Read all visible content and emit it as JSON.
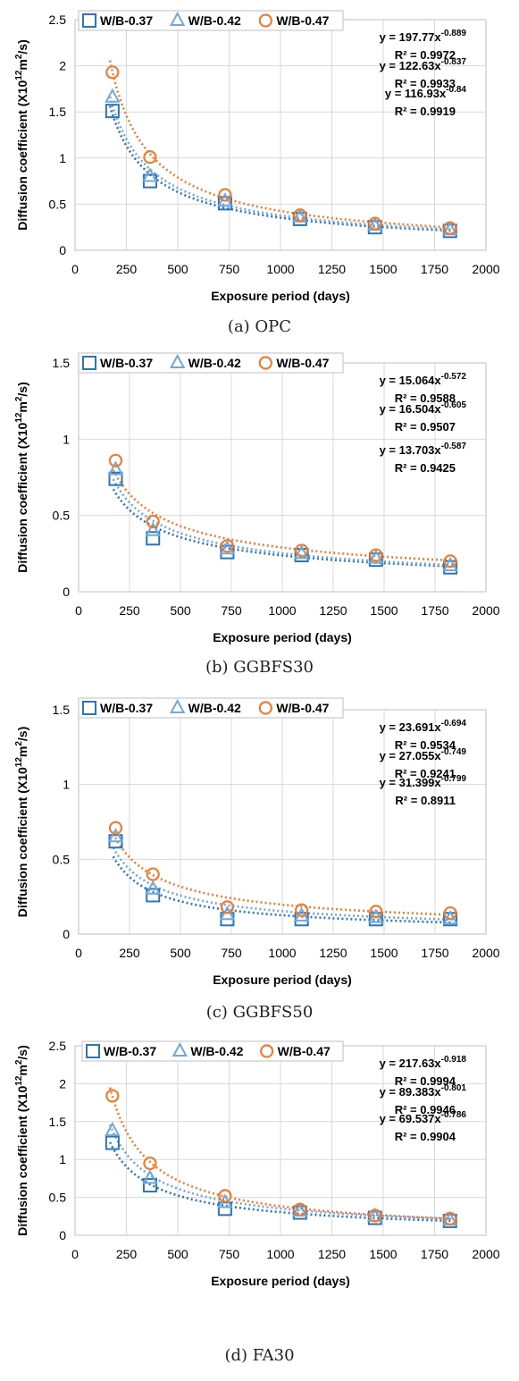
{
  "colors": {
    "wb037": "#2E75B6",
    "wb042": "#6FA8DC",
    "wb047": "#ED7D31",
    "grid": "#d9d9d9"
  },
  "chart_data": [
    {
      "type": "scatter",
      "caption": "(a) OPC",
      "xlabel": "Exposure period (days)",
      "ylabel": "Diffusion coefficient (X10",
      "ylabel_sup": "12",
      "ylabel_unit": "m",
      "ylabel_unit_sup": "2",
      "ylabel_end": "/s)",
      "xlim": [
        0,
        2000
      ],
      "ylim": [
        0,
        2.5
      ],
      "xticks": [
        "0",
        "250",
        "500",
        "750",
        "1000",
        "1250",
        "1500",
        "1750",
        "2000"
      ],
      "yticks": [
        "0",
        "0.5",
        "1",
        "1.5",
        "2",
        "2.5"
      ],
      "legend": "top",
      "series": [
        {
          "name": "W/B-0.37",
          "marker": "square",
          "x": [
            182,
            365,
            730,
            1095,
            1460,
            1825
          ],
          "y": [
            1.51,
            0.75,
            0.51,
            0.34,
            0.25,
            0.21
          ],
          "fit_a": 116.93,
          "fit_b": 0.84,
          "fit_eq": "y = 116.93x",
          "fit_exp": "-0.84",
          "r2": "R² = 0.9919"
        },
        {
          "name": "W/B-0.42",
          "marker": "triangle",
          "x": [
            182,
            365,
            730,
            1095,
            1460,
            1825
          ],
          "y": [
            1.66,
            0.8,
            0.53,
            0.36,
            0.27,
            0.22
          ],
          "fit_a": 122.63,
          "fit_b": 0.837,
          "fit_eq": "y = 122.63x",
          "fit_exp": "-0.837",
          "r2": "R² = 0.9933"
        },
        {
          "name": "W/B-0.47",
          "marker": "circle",
          "x": [
            182,
            365,
            730,
            1095,
            1460,
            1825
          ],
          "y": [
            1.93,
            1.01,
            0.6,
            0.38,
            0.29,
            0.24
          ],
          "fit_a": 197.77,
          "fit_b": 0.889,
          "fit_eq": "y = 197.77x",
          "fit_exp": "-0.889",
          "r2": "R² = 0.9972"
        }
      ]
    },
    {
      "type": "scatter",
      "caption": "(b) GGBFS30",
      "xlabel": "Exposure period (days)",
      "ylabel": "Diffusion coefficient (X10",
      "ylabel_sup": "12",
      "ylabel_unit": "m",
      "ylabel_unit_sup": "2",
      "ylabel_end": "/s)",
      "xlim": [
        0,
        2000
      ],
      "ylim": [
        0,
        1.5
      ],
      "xticks": [
        "0",
        "250",
        "500",
        "750",
        "1000",
        "1250",
        "1500",
        "1750",
        "2000"
      ],
      "yticks": [
        "0",
        "0.5",
        "1",
        "1.5"
      ],
      "legend": "top",
      "series": [
        {
          "name": "W/B-0.37",
          "marker": "square",
          "x": [
            182,
            365,
            730,
            1095,
            1460,
            1825
          ],
          "y": [
            0.74,
            0.35,
            0.26,
            0.24,
            0.21,
            0.16
          ],
          "fit_a": 13.703,
          "fit_b": 0.587,
          "fit_eq": "y = 13.703x",
          "fit_exp": "-0.587",
          "r2": "R² = 0.9425"
        },
        {
          "name": "W/B-0.42",
          "marker": "triangle",
          "x": [
            182,
            365,
            730,
            1095,
            1460,
            1825
          ],
          "y": [
            0.8,
            0.4,
            0.28,
            0.25,
            0.22,
            0.17
          ],
          "fit_a": 16.504,
          "fit_b": 0.605,
          "fit_eq": "y = 16.504x",
          "fit_exp": "-0.605",
          "r2": "R² = 0.9507"
        },
        {
          "name": "W/B-0.47",
          "marker": "circle",
          "x": [
            182,
            365,
            730,
            1095,
            1460,
            1825
          ],
          "y": [
            0.86,
            0.46,
            0.3,
            0.27,
            0.24,
            0.2
          ],
          "fit_a": 15.064,
          "fit_b": 0.572,
          "fit_eq": "y = 15.064x",
          "fit_exp": "-0.572",
          "r2": "R² = 0.9588"
        }
      ]
    },
    {
      "type": "scatter",
      "caption": "(c) GGBFS50",
      "xlabel": "Exposure period (days)",
      "ylabel": "Diffusion coefficient (X10",
      "ylabel_sup": "12",
      "ylabel_unit": "m",
      "ylabel_unit_sup": "2",
      "ylabel_end": "/s)",
      "xlim": [
        0,
        2000
      ],
      "ylim": [
        0,
        1.5
      ],
      "xticks": [
        "0",
        "250",
        "500",
        "750",
        "1000",
        "1250",
        "1500",
        "1750",
        "2000"
      ],
      "yticks": [
        "0",
        "0.5",
        "1",
        "1.5"
      ],
      "legend": "top",
      "series": [
        {
          "name": "W/B-0.37",
          "marker": "square",
          "x": [
            182,
            365,
            730,
            1095,
            1460,
            1825
          ],
          "y": [
            0.62,
            0.26,
            0.1,
            0.1,
            0.1,
            0.1
          ],
          "fit_a": 31.399,
          "fit_b": 0.799,
          "fit_eq": "y = 31.399x",
          "fit_exp": "-0.799",
          "r2": "R² = 0.8911"
        },
        {
          "name": "W/B-0.42",
          "marker": "triangle",
          "x": [
            182,
            365,
            730,
            1095,
            1460,
            1825
          ],
          "y": [
            0.65,
            0.3,
            0.13,
            0.12,
            0.11,
            0.1
          ],
          "fit_a": 27.055,
          "fit_b": 0.749,
          "fit_eq": "y = 27.055x",
          "fit_exp": "-0.749",
          "r2": "R² = 0.9241"
        },
        {
          "name": "W/B-0.47",
          "marker": "circle",
          "x": [
            182,
            365,
            730,
            1095,
            1460,
            1825
          ],
          "y": [
            0.71,
            0.4,
            0.18,
            0.16,
            0.15,
            0.14
          ],
          "fit_a": 23.691,
          "fit_b": 0.694,
          "fit_eq": "y = 23.691x",
          "fit_exp": "-0.694",
          "r2": "R² = 0.9534"
        }
      ]
    },
    {
      "type": "scatter",
      "caption": "(d) FA30",
      "xlabel": "Exposure period (days)",
      "ylabel": "Diffusion coefficient (X10",
      "ylabel_sup": "12",
      "ylabel_unit": "m",
      "ylabel_unit_sup": "2",
      "ylabel_end": "/s)",
      "xlim": [
        0,
        2000
      ],
      "ylim": [
        0,
        2.5
      ],
      "xticks": [
        "0",
        "250",
        "500",
        "750",
        "1000",
        "1250",
        "1500",
        "1750",
        "2000"
      ],
      "yticks": [
        "0",
        "0.5",
        "1",
        "1.5",
        "2",
        "2.5"
      ],
      "legend": "top",
      "series": [
        {
          "name": "W/B-0.37",
          "marker": "square",
          "x": [
            182,
            365,
            730,
            1095,
            1460,
            1825
          ],
          "y": [
            1.22,
            0.66,
            0.35,
            0.3,
            0.23,
            0.19
          ],
          "fit_a": 69.537,
          "fit_b": 0.786,
          "fit_eq": "y = 69.537x",
          "fit_exp": "-0.786",
          "r2": "R² = 0.9904"
        },
        {
          "name": "W/B-0.42",
          "marker": "triangle",
          "x": [
            182,
            365,
            730,
            1095,
            1460,
            1825
          ],
          "y": [
            1.38,
            0.75,
            0.43,
            0.32,
            0.25,
            0.2
          ],
          "fit_a": 89.383,
          "fit_b": 0.801,
          "fit_eq": "y = 89.383x",
          "fit_exp": "-0.801",
          "r2": "R² = 0.9946"
        },
        {
          "name": "W/B-0.47",
          "marker": "circle",
          "x": [
            182,
            365,
            730,
            1095,
            1460,
            1825
          ],
          "y": [
            1.84,
            0.95,
            0.52,
            0.34,
            0.26,
            0.22
          ],
          "fit_a": 217.63,
          "fit_b": 0.918,
          "fit_eq": "y = 217.63x",
          "fit_exp": "-0.918",
          "r2": "R² = 0.9994"
        }
      ]
    }
  ]
}
